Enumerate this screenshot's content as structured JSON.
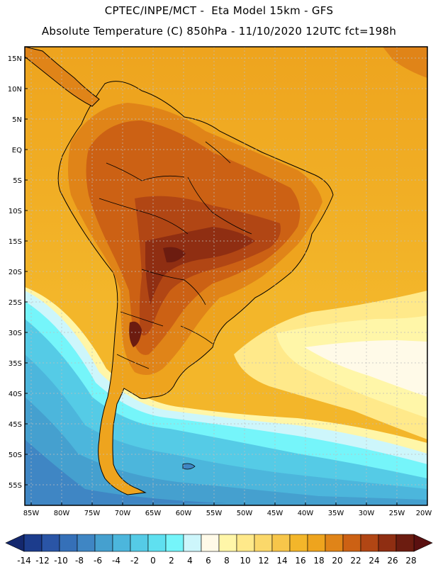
{
  "header": {
    "line1": "CPTEC/INPE/MCT -  Eta Model 15km - GFS",
    "line2": "Absolute Temperature (C) 850hPa - 11/10/2020 12UTC fct=198h"
  },
  "axes": {
    "lat_labels": [
      "15N",
      "10N",
      "5N",
      "EQ",
      "5S",
      "10S",
      "15S",
      "20S",
      "25S",
      "30S",
      "35S",
      "40S",
      "45S",
      "50S",
      "55S"
    ],
    "lon_labels": [
      "85W",
      "80W",
      "75W",
      "70W",
      "65W",
      "60W",
      "55W",
      "50W",
      "45W",
      "40W",
      "35W",
      "30W",
      "25W",
      "20W"
    ]
  },
  "colorbar": {
    "labels": [
      "-14",
      "-12",
      "-10",
      "-8",
      "-6",
      "-4",
      "-2",
      "0",
      "2",
      "4",
      "6",
      "8",
      "10",
      "12",
      "14",
      "16",
      "18",
      "20",
      "22",
      "24",
      "26",
      "28"
    ],
    "colors": [
      "#1c3c8c",
      "#2a55a6",
      "#3570b8",
      "#3f86c4",
      "#45a0cf",
      "#4cb6dc",
      "#55cbe6",
      "#5fe0f0",
      "#75f5fa",
      "#cdf6fb",
      "#fffae8",
      "#fff6a8",
      "#ffe98a",
      "#fbd86a",
      "#f7c64a",
      "#f3b62a",
      "#eea41e",
      "#e08418",
      "#cc6114",
      "#b14614",
      "#8f2e12",
      "#6c1c10"
    ],
    "under_color": "#14286e",
    "over_color": "#5a1010"
  }
}
